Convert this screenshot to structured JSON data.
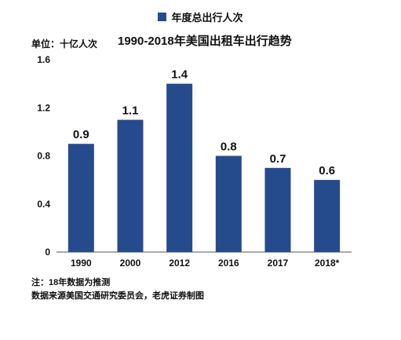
{
  "legend": {
    "label": "年度总出行人次",
    "color": "#264b8c"
  },
  "unit_label": "单位：十亿人次",
  "chart_data": {
    "type": "bar",
    "title": "1990-2018年美国出租车出行趋势",
    "categories": [
      "1990",
      "2000",
      "2012",
      "2016",
      "2017",
      "2018*"
    ],
    "series": [
      {
        "name": "年度总出行人次",
        "values": [
          0.9,
          1.1,
          1.4,
          0.8,
          0.7,
          0.6
        ]
      }
    ],
    "data_labels": [
      "0.9",
      "1.1",
      "1.4",
      "0.8",
      "0.7",
      "0.6"
    ],
    "ylim": [
      0,
      1.6
    ],
    "yticks": [
      0,
      0.4,
      0.8,
      1.2,
      1.6
    ],
    "ytick_labels": [
      "0",
      "0.4",
      "0.8",
      "1.2",
      "1.6"
    ],
    "grid": false,
    "bar_color": "#264b8c"
  },
  "notes": {
    "line1": "注：18年数据为推测",
    "line2": "数据来源美国交通研究委员会，老虎证券制图"
  }
}
